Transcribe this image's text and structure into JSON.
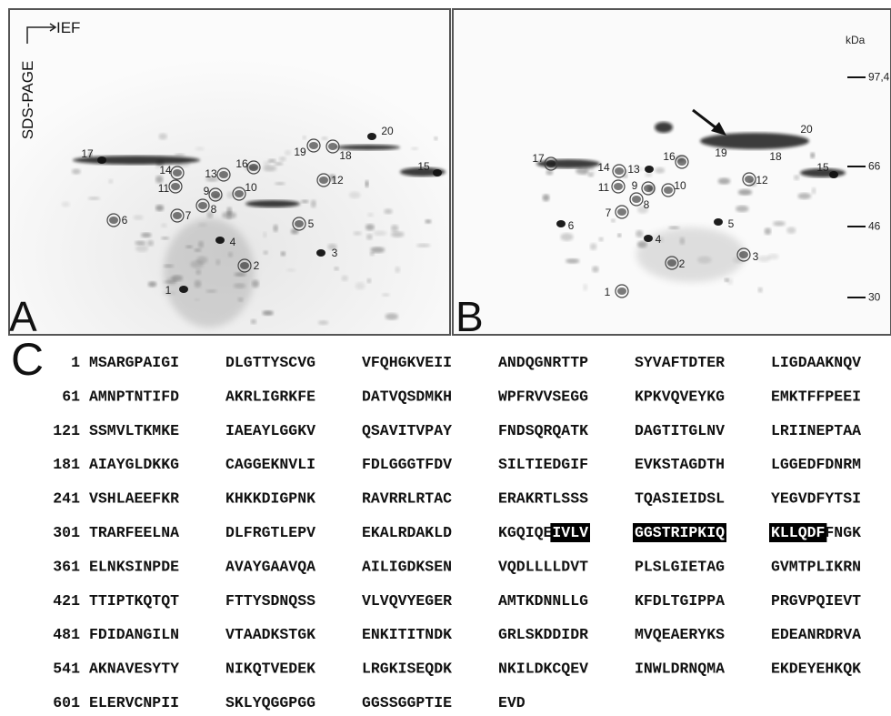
{
  "panel_a": {
    "label": "A",
    "axis_labels": {
      "horizontal": "IEF",
      "vertical": "SDS-PAGE"
    },
    "spots": [
      "1",
      "2",
      "3",
      "4",
      "5",
      "6",
      "7",
      "8",
      "9",
      "10",
      "11",
      "12",
      "13",
      "14",
      "15",
      "16",
      "17",
      "18",
      "19",
      "20"
    ]
  },
  "panel_b": {
    "label": "B",
    "mass_unit": "kDa",
    "markers": [
      "97,4",
      "66",
      "46",
      "30"
    ],
    "spots": [
      "1",
      "2",
      "3",
      "4",
      "5",
      "6",
      "7",
      "8",
      "9",
      "10",
      "11",
      "12",
      "13",
      "14",
      "15",
      "16",
      "17",
      "18",
      "19",
      "20"
    ]
  },
  "panel_c": {
    "label": "C",
    "rows": [
      {
        "number": "1",
        "blocks": [
          "MSARGPAIGI",
          "DLGTTYSCVG",
          "VFQHGKVEII",
          "ANDQGNRTTP",
          "SYVAFTDTER",
          "LIGDAAKNQV"
        ]
      },
      {
        "number": "61",
        "blocks": [
          "AMNPTNTIFD",
          "AKRLIGRKFE",
          "DATVQSDMKH",
          "WPFRVVSEGG",
          "KPKVQVEYKG",
          "EMKTFFPEEI"
        ]
      },
      {
        "number": "121",
        "blocks": [
          "SSMVLTKMKE",
          "IAEAYLGGKV",
          "QSAVITVPAY",
          "FNDSQRQATK",
          "DAGTITGLNV",
          "LRIINEPTAA"
        ]
      },
      {
        "number": "181",
        "blocks": [
          "AIAYGLDKKG",
          "CAGGEKNVLI",
          "FDLGGGTFDV",
          "SILTIEDGIF",
          "EVKSTAGDTH",
          "LGGEDFDNRM"
        ]
      },
      {
        "number": "241",
        "blocks": [
          "VSHLAEEFKR",
          "KHKKDIGPNK",
          "RAVRRLRTAC",
          "ERAKRTLSSS",
          "TQASIEIDSL",
          "YEGVDFYTSI"
        ]
      },
      {
        "number": "301",
        "blocks": [
          "TRARFEELNA",
          "DLFRGTLEPV",
          "EKALRDAKLD",
          [
            {
              "text": "KGQIQE",
              "highlight": false
            },
            {
              "text": "IVLV",
              "highlight": true
            }
          ],
          [
            {
              "text": "GGSTRIPKIQ",
              "highlight": true
            }
          ],
          [
            {
              "text": "KLLQDF",
              "highlight": true
            },
            {
              "text": "FNGK",
              "highlight": false
            }
          ]
        ]
      },
      {
        "number": "361",
        "blocks": [
          "ELNKSINPDE",
          "AVAYGAAVQA",
          "AILIGDKSEN",
          "VQDLLLLDVT",
          "PLSLGIETAG",
          "GVMTPLIKRN"
        ]
      },
      {
        "number": "421",
        "blocks": [
          "TTIPTKQTQT",
          "FTTYSDNQSS",
          "VLVQVYEGER",
          "AMTKDNNLLG",
          "KFDLTGIPPA",
          "PRGVPQIEVT"
        ]
      },
      {
        "number": "481",
        "blocks": [
          "FDIDANGILN",
          "VTAADKSTGK",
          "ENKITITNDK",
          "GRLSKDDIDR",
          "MVQEAERYKS",
          "EDEANRDRVA"
        ]
      },
      {
        "number": "541",
        "blocks": [
          "AKNAVESYTY",
          "NIKQTVEDEK",
          "LRGKISEQDK",
          "NKILDKCQEV",
          "INWLDRNQMA",
          "EKDEYEHKQK"
        ]
      },
      {
        "number": "601",
        "blocks": [
          "ELERVCNPII",
          "SKLYQGGPGG",
          "GGSSGGPTIE",
          "EVD"
        ]
      }
    ]
  }
}
